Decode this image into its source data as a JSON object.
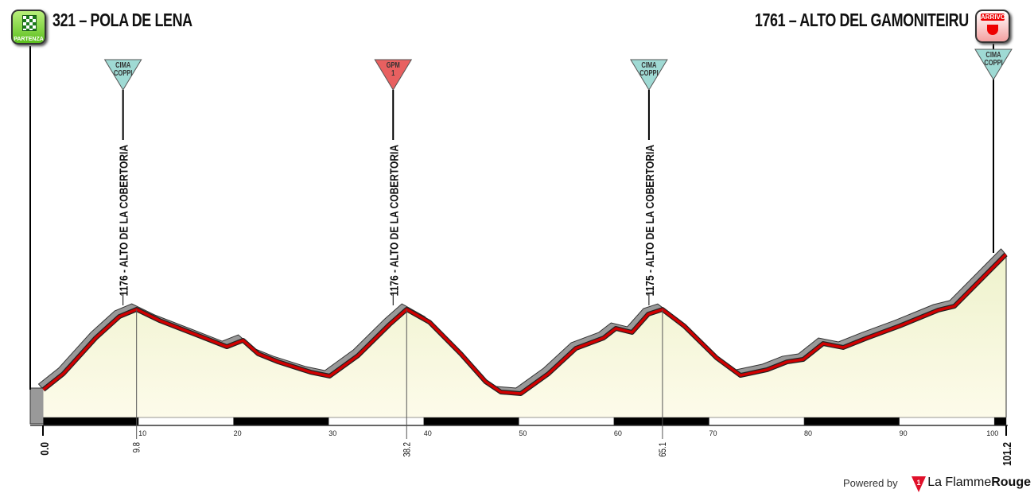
{
  "start": {
    "label": "321 – POLA DE LENA",
    "badge": "PARTENZA"
  },
  "finish": {
    "label": "1761 – ALTO DEL GAMONITEIRU",
    "badge": "ARRIVO"
  },
  "footer": {
    "powered_by": "Powered by",
    "brand_a": "La Flamme",
    "brand_b": "Rouge",
    "brand_mark": "1"
  },
  "colors": {
    "profile_line": "#d00000",
    "shadow": "#999999",
    "fill_top": "#eef2cc",
    "fill_bottom": "#fdfbea",
    "cima_coppi": "#9fdad4",
    "gpm": "#e86060"
  },
  "chart_data": {
    "type": "area",
    "xlabel": "",
    "ylabel": "",
    "xlim": [
      0,
      101.2
    ],
    "x_ticks": [
      "10",
      "20",
      "30",
      "40",
      "50",
      "60",
      "70",
      "80",
      "90",
      "100"
    ],
    "points": [
      [
        0.0,
        321
      ],
      [
        2.1,
        490
      ],
      [
        5.5,
        871
      ],
      [
        8.0,
        1100
      ],
      [
        9.8,
        1176
      ],
      [
        12.2,
        1058
      ],
      [
        16.3,
        897
      ],
      [
        19.3,
        778
      ],
      [
        21.0,
        846
      ],
      [
        22.6,
        702
      ],
      [
        24.7,
        617
      ],
      [
        28.1,
        507
      ],
      [
        30.1,
        465
      ],
      [
        33.1,
        685
      ],
      [
        36.4,
        1015
      ],
      [
        38.2,
        1176
      ],
      [
        40.6,
        1040
      ],
      [
        43.9,
        702
      ],
      [
        46.5,
        406
      ],
      [
        48.1,
        296
      ],
      [
        50.2,
        279
      ],
      [
        53.1,
        490
      ],
      [
        56.0,
        761
      ],
      [
        58.9,
        871
      ],
      [
        60.2,
        973
      ],
      [
        61.9,
        931
      ],
      [
        63.6,
        1125
      ],
      [
        65.1,
        1175
      ],
      [
        67.4,
        998
      ],
      [
        70.8,
        659
      ],
      [
        73.3,
        473
      ],
      [
        76.1,
        533
      ],
      [
        78.2,
        617
      ],
      [
        79.9,
        643
      ],
      [
        82.0,
        812
      ],
      [
        84.1,
        770
      ],
      [
        86.6,
        871
      ],
      [
        90.0,
        998
      ],
      [
        94.1,
        1168
      ],
      [
        95.8,
        1210
      ],
      [
        101.2,
        1761
      ]
    ],
    "climbs": [
      {
        "km": 9.8,
        "km_label": "9.8",
        "label": "1176 - ALTO DE LA COBERTORIA",
        "marker": "CIMA COPPI",
        "marker_l1": "CIMA",
        "marker_l2": "COPPI",
        "type": "cima"
      },
      {
        "km": 38.2,
        "km_label": "38.2",
        "label": "1176 - ALTO DE LA COBERTORIA",
        "marker": "GPM 1",
        "marker_l1": "GPM",
        "marker_l2": "1",
        "type": "gpm"
      },
      {
        "km": 65.1,
        "km_label": "65.1",
        "label": "1175 - ALTO DE LA COBERTORIA",
        "marker": "CIMA COPPI",
        "marker_l1": "CIMA",
        "marker_l2": "COPPI",
        "type": "cima"
      }
    ],
    "finish_marker": {
      "km": 101.2,
      "marker_l1": "CIMA",
      "marker_l2": "COPPI"
    },
    "km_labels": [
      "0.0",
      "101.2"
    ]
  }
}
